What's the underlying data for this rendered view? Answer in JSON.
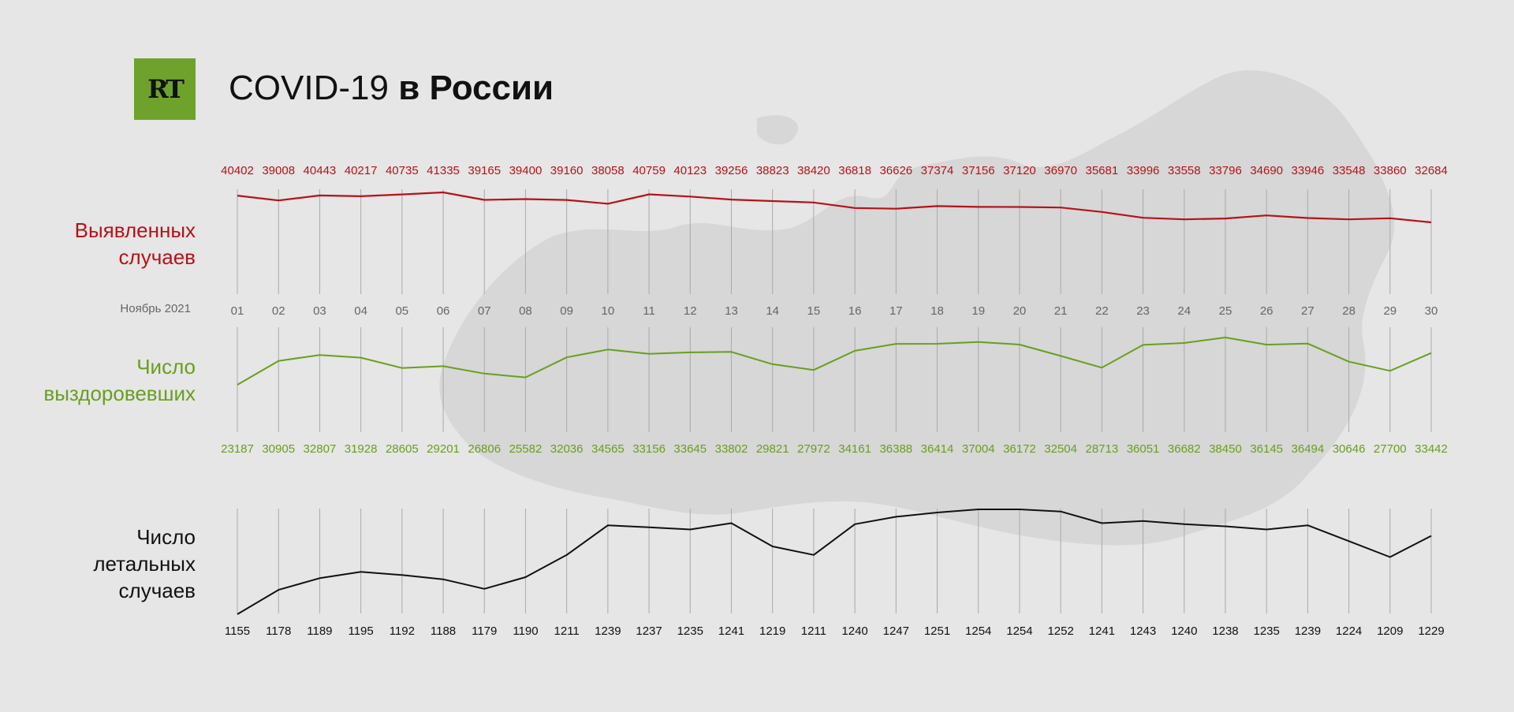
{
  "header": {
    "logo_text": "RT",
    "title_regular": "COVID-19",
    "title_bold": "в России"
  },
  "colors": {
    "background": "#e5e6e5",
    "logo_green": "#6fa22c",
    "cases": "#b5121b",
    "recovered": "#6a9e1f",
    "deaths": "#111111",
    "gridline": "#a9aaa9",
    "map": "#d6d7d6"
  },
  "labels": {
    "cases": [
      "Выявленных",
      "случаев"
    ],
    "recovered": [
      "Число",
      "выздоровевших"
    ],
    "deaths": [
      "Число",
      "летальных",
      "случаев"
    ],
    "month": "Ноябрь 2021"
  },
  "chart_data": [
    {
      "type": "line",
      "categories": [
        "01",
        "02",
        "03",
        "04",
        "05",
        "06",
        "07",
        "08",
        "09",
        "10",
        "11",
        "12",
        "13",
        "14",
        "15",
        "16",
        "17",
        "18",
        "19",
        "20",
        "21",
        "22",
        "23",
        "24",
        "25",
        "26",
        "27",
        "28",
        "29",
        "30"
      ],
      "series": [
        {
          "name": "Выявленных случаев",
          "values": [
            40402,
            39008,
            40443,
            40217,
            40735,
            41335,
            39165,
            39400,
            39160,
            38058,
            40759,
            40123,
            39256,
            38823,
            38420,
            36818,
            36626,
            37374,
            37156,
            37120,
            36970,
            35681,
            33996,
            33558,
            33796,
            34690,
            33946,
            33548,
            33860,
            32684
          ]
        }
      ],
      "grid": "vertical",
      "data_labels": "top"
    },
    {
      "type": "line",
      "categories": [
        "01",
        "02",
        "03",
        "04",
        "05",
        "06",
        "07",
        "08",
        "09",
        "10",
        "11",
        "12",
        "13",
        "14",
        "15",
        "16",
        "17",
        "18",
        "19",
        "20",
        "21",
        "22",
        "23",
        "24",
        "25",
        "26",
        "27",
        "28",
        "29",
        "30"
      ],
      "series": [
        {
          "name": "Число выздоровевших",
          "values": [
            23187,
            30905,
            32807,
            31928,
            28605,
            29201,
            26806,
            25582,
            32036,
            34565,
            33156,
            33645,
            33802,
            29821,
            27972,
            34161,
            36388,
            36414,
            37004,
            36172,
            32504,
            28713,
            36051,
            36682,
            38450,
            36145,
            36494,
            30646,
            27700,
            33442
          ]
        }
      ],
      "grid": "vertical",
      "data_labels": "bottom"
    },
    {
      "type": "line",
      "categories": [
        "01",
        "02",
        "03",
        "04",
        "05",
        "06",
        "07",
        "08",
        "09",
        "10",
        "11",
        "12",
        "13",
        "14",
        "15",
        "16",
        "17",
        "18",
        "19",
        "20",
        "21",
        "22",
        "23",
        "24",
        "25",
        "26",
        "27",
        "28",
        "29",
        "30"
      ],
      "series": [
        {
          "name": "Число летальных случаев",
          "values": [
            1155,
            1178,
            1189,
            1195,
            1192,
            1188,
            1179,
            1190,
            1211,
            1239,
            1237,
            1235,
            1241,
            1219,
            1211,
            1240,
            1247,
            1251,
            1254,
            1254,
            1252,
            1241,
            1243,
            1240,
            1238,
            1235,
            1239,
            1224,
            1209,
            1229
          ]
        }
      ],
      "grid": "vertical",
      "data_labels": "bottom"
    }
  ]
}
